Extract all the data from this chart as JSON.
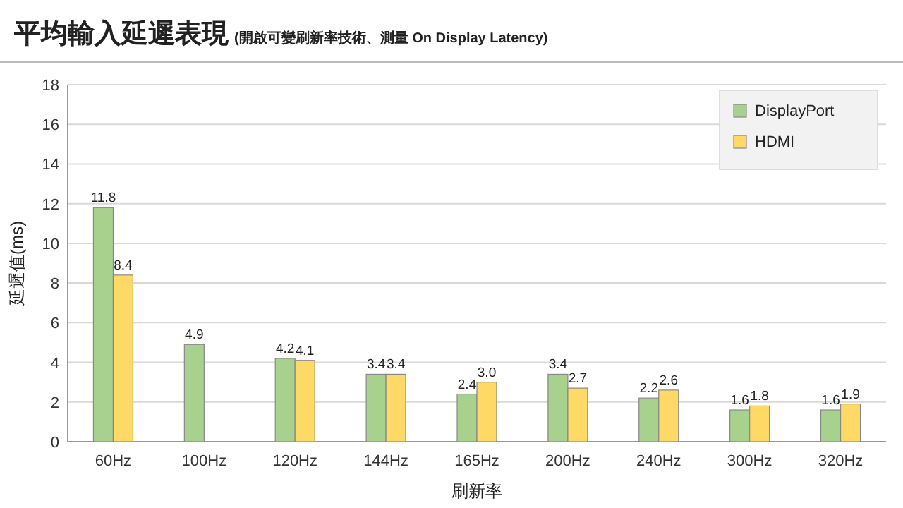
{
  "chart_data": {
    "type": "bar",
    "title": "平均輸入延遲表現",
    "subtitle": "(開啟可變刷新率技術、測量 On Display Latency)",
    "xlabel": "刷新率",
    "ylabel": "延遲值(ms)",
    "categories": [
      "60Hz",
      "100Hz",
      "120Hz",
      "144Hz",
      "165Hz",
      "200Hz",
      "240Hz",
      "300Hz",
      "320Hz"
    ],
    "series": [
      {
        "name": "DisplayPort",
        "color": "#a9d18e",
        "values": [
          11.8,
          4.9,
          4.2,
          3.4,
          2.4,
          3.4,
          2.2,
          1.6,
          1.6
        ],
        "value_labels": [
          "11.8",
          "4.9",
          "4.2",
          "3.4",
          "2.4",
          "3.4",
          "2.2",
          "1.6",
          "1.6"
        ]
      },
      {
        "name": "HDMI",
        "color": "#ffd966",
        "values": [
          8.4,
          null,
          4.1,
          3.4,
          3.0,
          2.7,
          2.6,
          1.8,
          1.9
        ],
        "value_labels": [
          "8.4",
          null,
          "4.1",
          "3.4",
          "3.0",
          "2.7",
          "2.6",
          "1.8",
          "1.9"
        ]
      }
    ],
    "ylim": [
      0,
      18
    ],
    "yticks": [
      0,
      2,
      4,
      6,
      8,
      10,
      12,
      14,
      16,
      18
    ],
    "grid": "y",
    "legend": "top right"
  }
}
